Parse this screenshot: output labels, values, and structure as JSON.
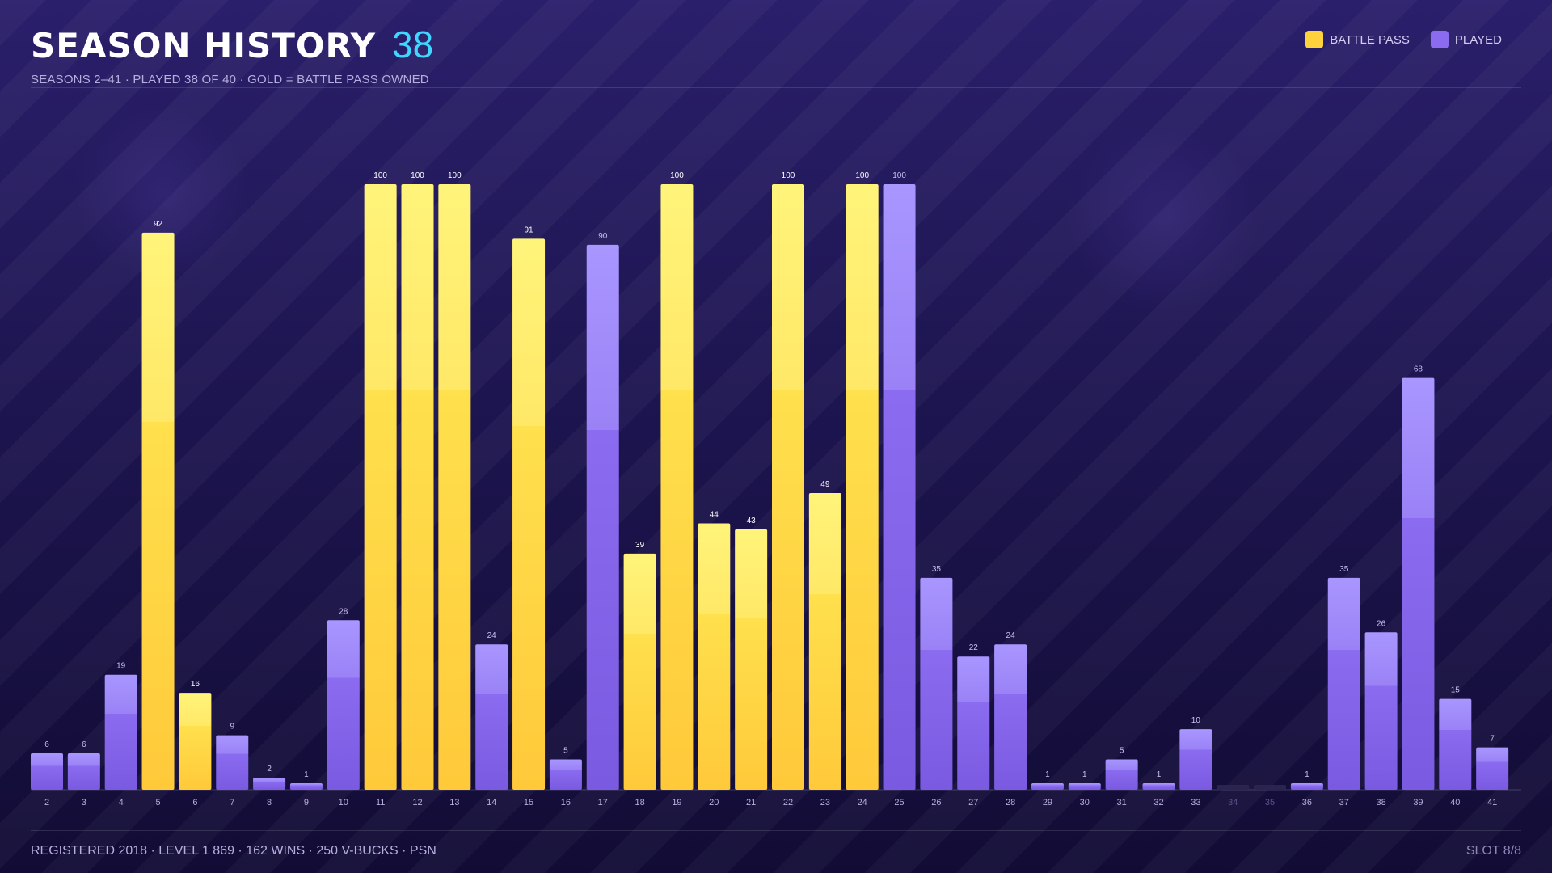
{
  "header": {
    "title": "SEASON HISTORY",
    "count": "38",
    "subtitle": "SEASONS 2–41 · PLAYED 38 OF 40 · GOLD = BATTLE PASS OWNED"
  },
  "legend": {
    "battle_pass": "BATTLE PASS",
    "played": "PLAYED"
  },
  "colors": {
    "battle_pass": "#ffd23d",
    "played": "#8b6cf0",
    "accent": "#3fd6ff"
  },
  "chart_data": {
    "type": "bar",
    "categories": [
      "2",
      "3",
      "4",
      "5",
      "6",
      "7",
      "8",
      "9",
      "10",
      "11",
      "12",
      "13",
      "14",
      "15",
      "16",
      "17",
      "18",
      "19",
      "20",
      "21",
      "22",
      "23",
      "24",
      "25",
      "26",
      "27",
      "28",
      "29",
      "30",
      "31",
      "32",
      "33",
      "34",
      "35",
      "36",
      "37",
      "38",
      "39",
      "40",
      "41"
    ],
    "values": [
      6,
      6,
      19,
      92,
      16,
      9,
      2,
      1,
      28,
      100,
      100,
      100,
      24,
      91,
      5,
      90,
      39,
      100,
      44,
      43,
      100,
      49,
      100,
      100,
      35,
      22,
      24,
      1,
      1,
      5,
      1,
      10,
      0,
      0,
      1,
      35,
      26,
      68,
      15,
      7
    ],
    "status": [
      "played",
      "played",
      "played",
      "battle_pass",
      "battle_pass",
      "played",
      "played",
      "played",
      "played",
      "battle_pass",
      "battle_pass",
      "battle_pass",
      "played",
      "battle_pass",
      "played",
      "played",
      "battle_pass",
      "battle_pass",
      "battle_pass",
      "battle_pass",
      "battle_pass",
      "battle_pass",
      "battle_pass",
      "played",
      "played",
      "played",
      "played",
      "played",
      "played",
      "played",
      "played",
      "played",
      "none",
      "none",
      "played",
      "played",
      "played",
      "played",
      "played",
      "played"
    ],
    "legend": [
      "BATTLE PASS",
      "PLAYED"
    ],
    "ylim": [
      0,
      100
    ],
    "grid": false,
    "legend_position": "top-right"
  },
  "footer": {
    "left": "REGISTERED 2018 · LEVEL 1 869 · 162 WINS · 250 V-BUCKS · PSN",
    "right": "SLOT 8/8"
  }
}
